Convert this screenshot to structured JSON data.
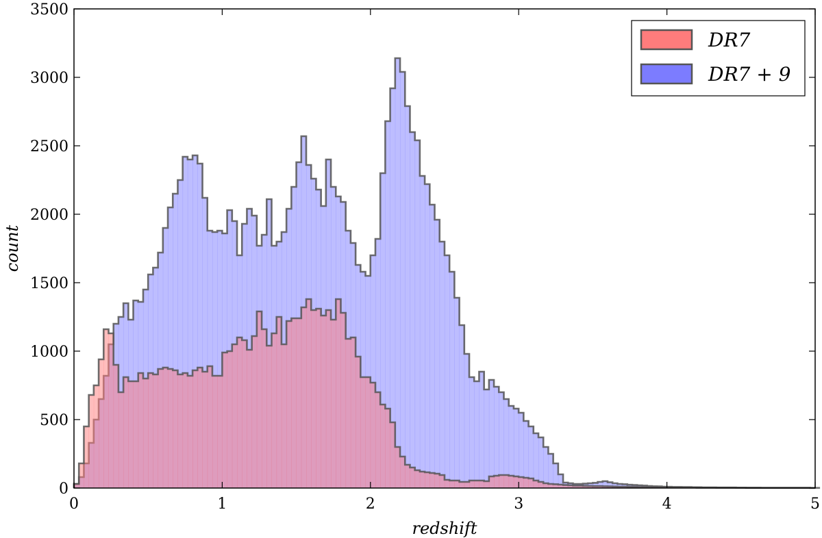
{
  "chart_data": {
    "type": "histogram",
    "title": "",
    "xlabel": "redshift",
    "ylabel": "count",
    "xlim": [
      0,
      5
    ],
    "ylim": [
      0,
      3500
    ],
    "xticks": [
      "0",
      "1",
      "2",
      "3",
      "4",
      "5"
    ],
    "yticks": [
      "0",
      "500",
      "1000",
      "1500",
      "2000",
      "2500",
      "3000",
      "3500"
    ],
    "grid": false,
    "legend_position": "top-right",
    "bin_start": 0,
    "bin_width": 0.03333,
    "series": [
      {
        "name": "DR7 + 9",
        "color": "#7c7cff",
        "values": [
          30,
          80,
          180,
          330,
          500,
          650,
          820,
          1050,
          1200,
          1250,
          1350,
          1230,
          1370,
          1360,
          1450,
          1560,
          1610,
          1720,
          1900,
          2050,
          2150,
          2250,
          2420,
          2400,
          2430,
          2370,
          2120,
          1880,
          1870,
          1880,
          1860,
          2030,
          1950,
          1700,
          1930,
          2040,
          1990,
          1770,
          1850,
          2110,
          1770,
          1800,
          1870,
          2040,
          2200,
          2380,
          2570,
          2360,
          2260,
          2180,
          2060,
          2400,
          2200,
          2130,
          2090,
          1880,
          1790,
          1630,
          1580,
          1550,
          1700,
          1820,
          2300,
          2680,
          2920,
          3140,
          3040,
          2790,
          2600,
          2540,
          2280,
          2220,
          2070,
          1960,
          1800,
          1700,
          1580,
          1390,
          1190,
          980,
          810,
          780,
          850,
          720,
          790,
          740,
          700,
          650,
          600,
          580,
          550,
          490,
          450,
          400,
          370,
          300,
          250,
          180,
          100,
          40,
          35,
          30,
          30,
          32,
          35,
          38,
          45,
          50,
          42,
          35,
          30,
          28,
          24,
          22,
          20,
          18,
          15,
          13,
          12,
          10,
          9,
          8,
          8,
          7,
          7,
          6,
          6,
          5,
          5,
          5,
          4,
          4,
          4,
          4,
          3,
          3,
          3,
          3,
          3,
          2,
          2,
          2,
          2,
          2,
          2,
          2,
          2,
          2,
          2,
          1,
          1,
          1
        ]
      },
      {
        "name": "DR7",
        "color": "#ff7c7c",
        "values": [
          30,
          180,
          450,
          680,
          750,
          940,
          1160,
          1130,
          900,
          700,
          810,
          780,
          780,
          840,
          800,
          840,
          830,
          870,
          880,
          870,
          860,
          830,
          840,
          820,
          860,
          880,
          850,
          890,
          820,
          820,
          990,
          1000,
          1050,
          1100,
          1080,
          1010,
          1110,
          1290,
          1160,
          1040,
          1130,
          1250,
          1050,
          1220,
          1240,
          1240,
          1320,
          1380,
          1300,
          1310,
          1260,
          1300,
          1230,
          1380,
          1280,
          1090,
          1100,
          960,
          810,
          810,
          770,
          700,
          610,
          580,
          480,
          300,
          230,
          170,
          150,
          130,
          120,
          115,
          110,
          105,
          95,
          60,
          55,
          55,
          45,
          45,
          55,
          55,
          55,
          50,
          85,
          90,
          95,
          95,
          90,
          85,
          80,
          75,
          70,
          55,
          45,
          35,
          30,
          28,
          25,
          22,
          20,
          18,
          18,
          16,
          15,
          14,
          14,
          13,
          12,
          11,
          10,
          10,
          9,
          9,
          8,
          8,
          7,
          7,
          6,
          6,
          5,
          5,
          5,
          4,
          4,
          4,
          3,
          3,
          3,
          3,
          2,
          2,
          2,
          2,
          2,
          2,
          1,
          1,
          1,
          1,
          1,
          1,
          1,
          1,
          1,
          1,
          1,
          1,
          1,
          1
        ]
      }
    ]
  }
}
